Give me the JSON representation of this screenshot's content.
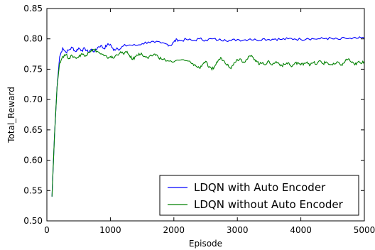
{
  "chart_data": {
    "type": "line",
    "title": "",
    "xlabel": "Episode",
    "ylabel": "Total_Reward",
    "xlim": [
      0,
      5000
    ],
    "ylim": [
      0.5,
      0.85
    ],
    "xticks": [
      0,
      1000,
      2000,
      3000,
      4000,
      5000
    ],
    "xtick_labels": [
      "0",
      "1000",
      "2000",
      "3000",
      "4000",
      "5000"
    ],
    "yticks": [
      0.5,
      0.55,
      0.6,
      0.65,
      0.7,
      0.75,
      0.8,
      0.85
    ],
    "ytick_labels": [
      "0.50",
      "0.55",
      "0.60",
      "0.65",
      "0.70",
      "0.75",
      "0.80",
      "0.85"
    ],
    "grid": false,
    "legend_position": "lower-right",
    "series": [
      {
        "name": "LDQN with Auto Encoder",
        "color": "#0000ff",
        "x": [
          80,
          120,
          160,
          200,
          250,
          300,
          350,
          400,
          450,
          500,
          550,
          600,
          650,
          700,
          750,
          800,
          850,
          900,
          950,
          1000,
          1050,
          1100,
          1150,
          1200,
          1300,
          1400,
          1500,
          1600,
          1700,
          1800,
          1900,
          1950,
          2000,
          2050,
          2100,
          2200,
          2300,
          2400,
          2500,
          2600,
          2700,
          2800,
          2900,
          3000,
          3100,
          3200,
          3300,
          3400,
          3500,
          3600,
          3700,
          3800,
          3900,
          4000,
          4100,
          4200,
          4300,
          4400,
          4500,
          4600,
          4700,
          4800,
          4900,
          5000
        ],
        "y": [
          0.54,
          0.64,
          0.72,
          0.77,
          0.785,
          0.778,
          0.782,
          0.786,
          0.779,
          0.785,
          0.781,
          0.784,
          0.778,
          0.783,
          0.779,
          0.786,
          0.789,
          0.784,
          0.79,
          0.791,
          0.781,
          0.785,
          0.783,
          0.788,
          0.79,
          0.789,
          0.792,
          0.795,
          0.794,
          0.793,
          0.791,
          0.789,
          0.795,
          0.799,
          0.797,
          0.799,
          0.797,
          0.8,
          0.798,
          0.8,
          0.798,
          0.799,
          0.797,
          0.799,
          0.798,
          0.8,
          0.798,
          0.8,
          0.799,
          0.8,
          0.799,
          0.8,
          0.8,
          0.799,
          0.801,
          0.8,
          0.8,
          0.801,
          0.8,
          0.799,
          0.801,
          0.8,
          0.801,
          0.801
        ]
      },
      {
        "name": "LDQN without Auto Encoder",
        "color": "#008000",
        "x": [
          80,
          120,
          160,
          200,
          250,
          300,
          350,
          400,
          450,
          500,
          550,
          600,
          650,
          700,
          750,
          800,
          850,
          900,
          950,
          1000,
          1050,
          1100,
          1150,
          1200,
          1250,
          1300,
          1350,
          1400,
          1450,
          1500,
          1550,
          1600,
          1650,
          1700,
          1750,
          1800,
          1900,
          2000,
          2100,
          2200,
          2300,
          2350,
          2400,
          2450,
          2500,
          2550,
          2600,
          2650,
          2700,
          2750,
          2800,
          2850,
          2900,
          2950,
          3000,
          3050,
          3100,
          3150,
          3200,
          3250,
          3300,
          3350,
          3400,
          3450,
          3500,
          3550,
          3600,
          3650,
          3700,
          3750,
          3800,
          3850,
          3900,
          3950,
          4000,
          4050,
          4100,
          4150,
          4200,
          4250,
          4300,
          4350,
          4400,
          4450,
          4500,
          4550,
          4600,
          4650,
          4700,
          4750,
          4800,
          4850,
          4900,
          4950,
          5000
        ],
        "y": [
          0.54,
          0.64,
          0.72,
          0.76,
          0.771,
          0.774,
          0.768,
          0.772,
          0.769,
          0.77,
          0.776,
          0.771,
          0.778,
          0.781,
          0.782,
          0.779,
          0.775,
          0.772,
          0.769,
          0.771,
          0.768,
          0.774,
          0.777,
          0.776,
          0.778,
          0.773,
          0.766,
          0.771,
          0.776,
          0.774,
          0.77,
          0.768,
          0.772,
          0.775,
          0.771,
          0.767,
          0.764,
          0.762,
          0.765,
          0.764,
          0.759,
          0.755,
          0.752,
          0.758,
          0.763,
          0.753,
          0.749,
          0.756,
          0.765,
          0.768,
          0.762,
          0.758,
          0.751,
          0.761,
          0.766,
          0.767,
          0.762,
          0.766,
          0.772,
          0.769,
          0.764,
          0.758,
          0.761,
          0.758,
          0.763,
          0.757,
          0.762,
          0.76,
          0.756,
          0.758,
          0.761,
          0.754,
          0.759,
          0.761,
          0.757,
          0.76,
          0.762,
          0.757,
          0.761,
          0.758,
          0.764,
          0.759,
          0.762,
          0.758,
          0.757,
          0.759,
          0.761,
          0.756,
          0.764,
          0.767,
          0.761,
          0.757,
          0.762,
          0.759,
          0.763
        ]
      }
    ]
  }
}
